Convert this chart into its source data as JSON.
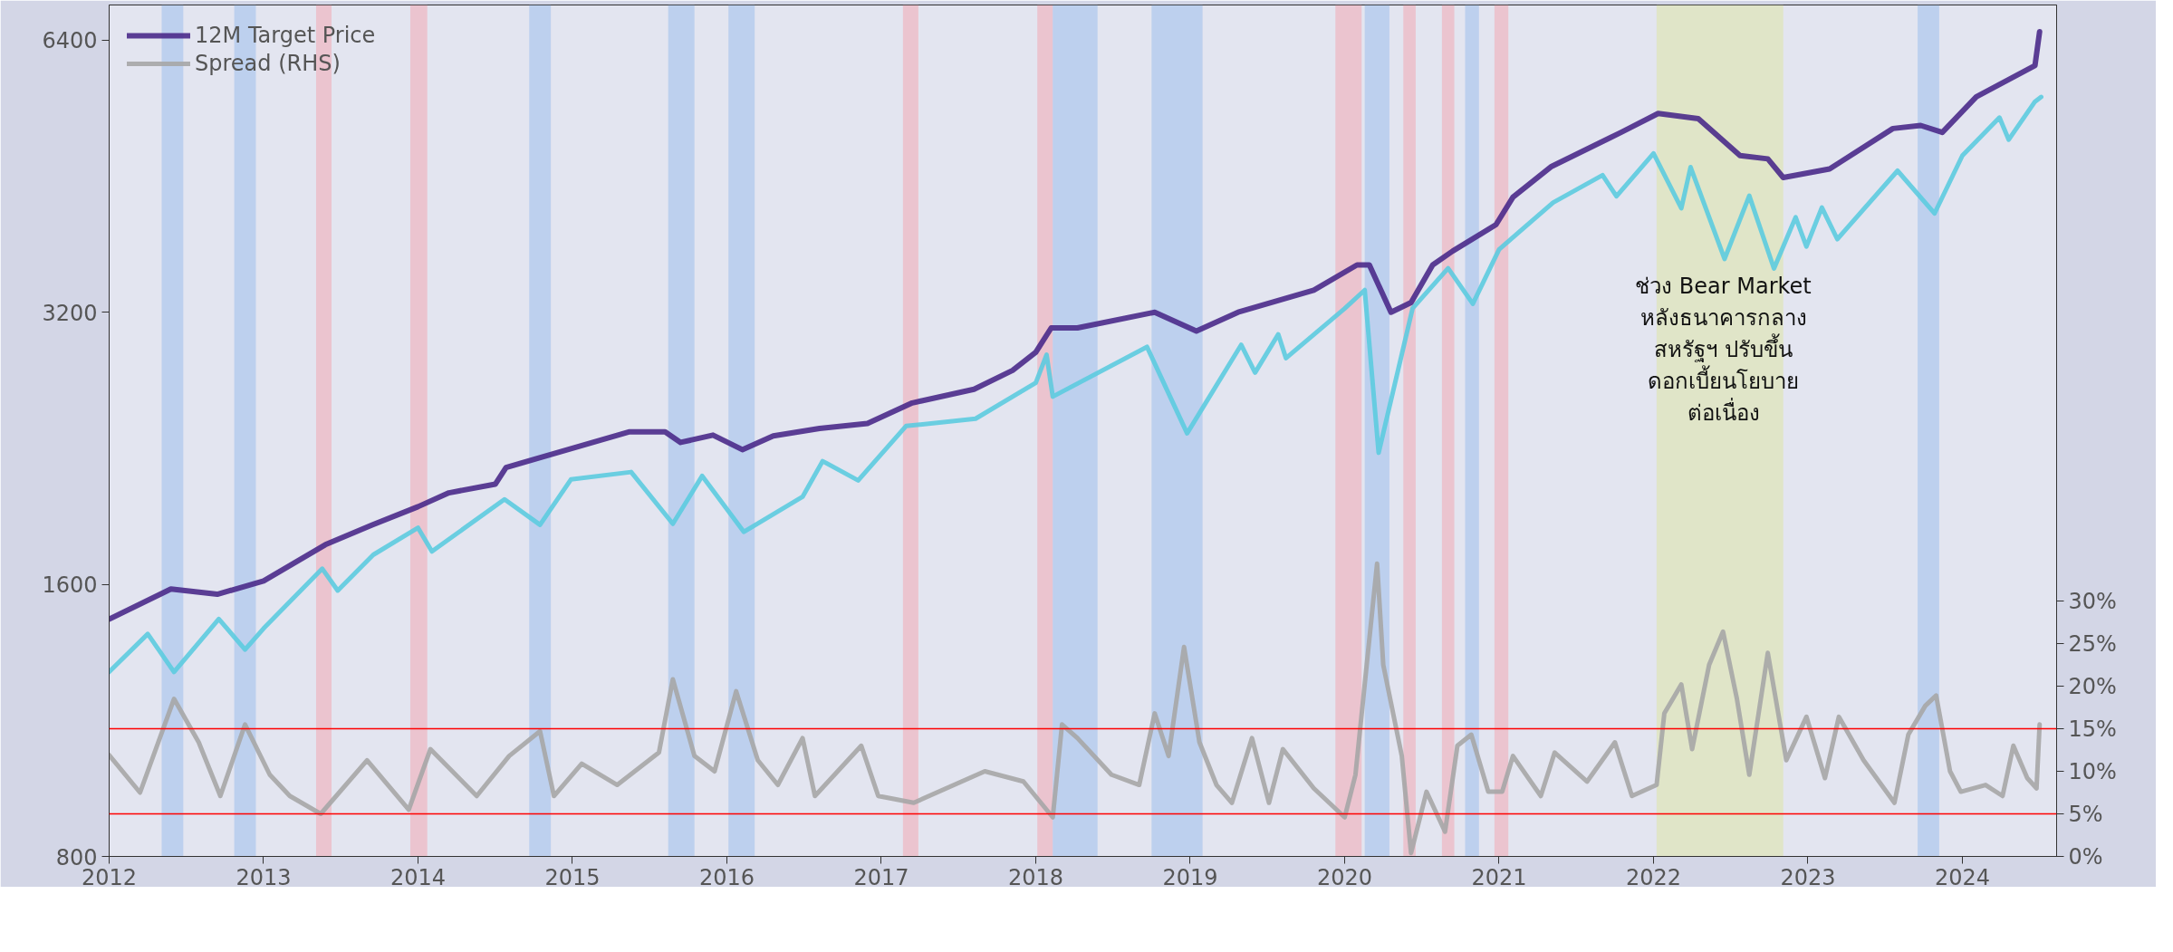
{
  "chart_data": {
    "type": "line",
    "xlim": [
      2012,
      2024.61
    ],
    "xticks": [
      2012,
      2013,
      2014,
      2015,
      2016,
      2017,
      2018,
      2019,
      2020,
      2021,
      2022,
      2023,
      2024
    ],
    "ylim": [
      800,
      7000
    ],
    "yticks": [
      800,
      1600,
      3200,
      6400
    ],
    "log": "y",
    "y2lim": [
      0,
      100
    ],
    "y2ticks": [
      {
        "value": 0,
        "label": "0%"
      },
      {
        "value": 5,
        "label": "5%"
      },
      {
        "value": 10,
        "label": "10%"
      },
      {
        "value": 15,
        "label": "15%"
      },
      {
        "value": 20,
        "label": "20%"
      },
      {
        "value": 25,
        "label": "25%"
      },
      {
        "value": 30,
        "label": "30%"
      }
    ],
    "grid": false,
    "legend": "top left",
    "series": [
      {
        "color": "#5ccbdf",
        "x": [
          2012.0,
          2012.25,
          2012.42,
          2012.71,
          2012.88,
          2013.0,
          2013.38,
          2013.48,
          2013.71,
          2014.0,
          2014.09,
          2014.56,
          2014.79,
          2014.99,
          2015.38,
          2015.65,
          2015.84,
          2016.11,
          2016.49,
          2016.62,
          2016.85,
          2017.16,
          2017.61,
          2018.0,
          2018.07,
          2018.11,
          2018.72,
          2018.98,
          2019.33,
          2019.42,
          2019.57,
          2019.62,
          2020.0,
          2020.13,
          2020.22,
          2020.44,
          2020.67,
          2020.83,
          2021.0,
          2021.35,
          2021.67,
          2021.76,
          2022.0,
          2022.18,
          2022.24,
          2022.46,
          2022.62,
          2022.78,
          2022.92,
          2022.99,
          2023.09,
          2023.19,
          2023.58,
          2023.82,
          2024.0,
          2024.24,
          2024.3,
          2024.47,
          2024.51
        ],
        "values": [
          1280,
          1410,
          1280,
          1465,
          1355,
          1430,
          1665,
          1575,
          1725,
          1848,
          1740,
          1987,
          1862,
          2090,
          2130,
          1867,
          2109,
          1829,
          2000,
          2190,
          2085,
          2395,
          2440,
          2673,
          2872,
          2581,
          2930,
          2351,
          2945,
          2744,
          3025,
          2847,
          3230,
          3386,
          2237,
          3232,
          3580,
          3270,
          3756,
          4232,
          4537,
          4300,
          4796,
          4170,
          4631,
          3666,
          4305,
          3577,
          4076,
          3783,
          4179,
          3855,
          4589,
          4117,
          4770,
          5254,
          4967,
          5473,
          5537
        ]
      },
      {
        "name": "12M Target Price",
        "color": "#4a2a8a",
        "x": [
          2012.0,
          2012.4,
          2012.7,
          2013.0,
          2013.4,
          2013.7,
          2014.0,
          2014.2,
          2014.5,
          2014.57,
          2015.37,
          2015.6,
          2015.7,
          2015.91,
          2016.1,
          2016.3,
          2016.6,
          2016.91,
          2017.2,
          2017.6,
          2017.85,
          2018.0,
          2018.1,
          2018.27,
          2018.77,
          2019.04,
          2019.31,
          2019.8,
          2020.08,
          2020.16,
          2020.3,
          2020.43,
          2020.57,
          2020.7,
          2020.98,
          2021.09,
          2021.34,
          2021.79,
          2022.03,
          2022.29,
          2022.56,
          2022.74,
          2022.84,
          2023.14,
          2023.55,
          2023.73,
          2023.87,
          2024.09,
          2024.47,
          2024.5
        ],
        "values": [
          1464,
          1581,
          1560,
          1614,
          1770,
          1860,
          1950,
          2020,
          2065,
          2155,
          2360,
          2360,
          2297,
          2340,
          2255,
          2335,
          2380,
          2410,
          2540,
          2630,
          2760,
          2890,
          3075,
          3075,
          3200,
          3050,
          3200,
          3385,
          3610,
          3610,
          3200,
          3280,
          3610,
          3740,
          4000,
          4290,
          4640,
          5060,
          5310,
          5240,
          4770,
          4730,
          4510,
          4610,
          5110,
          5150,
          5060,
          5540,
          6000,
          6540
        ]
      },
      {
        "name": "Spread (RHS)",
        "color": "#a6a6a6",
        "axis": "y2",
        "x": [
          2012.0,
          2012.2,
          2012.42,
          2012.58,
          2012.72,
          2012.88,
          2013.04,
          2013.17,
          2013.37,
          2013.67,
          2013.94,
          2014.08,
          2014.38,
          2014.59,
          2014.79,
          2014.88,
          2015.06,
          2015.29,
          2015.56,
          2015.65,
          2015.79,
          2015.92,
          2016.06,
          2016.2,
          2016.33,
          2016.49,
          2016.57,
          2016.87,
          2016.98,
          2017.21,
          2017.67,
          2017.92,
          2018.11,
          2018.17,
          2018.27,
          2018.49,
          2018.67,
          2018.77,
          2018.86,
          2018.96,
          2019.06,
          2019.17,
          2019.27,
          2019.4,
          2019.51,
          2019.6,
          2019.8,
          2020.0,
          2020.07,
          2020.21,
          2020.25,
          2020.37,
          2020.43,
          2020.53,
          2020.65,
          2020.73,
          2020.82,
          2020.93,
          2021.02,
          2021.09,
          2021.27,
          2021.36,
          2021.57,
          2021.75,
          2021.86,
          2022.02,
          2022.07,
          2022.18,
          2022.25,
          2022.36,
          2022.45,
          2022.54,
          2022.62,
          2022.74,
          2022.86,
          2022.99,
          2023.11,
          2023.2,
          2023.36,
          2023.56,
          2023.65,
          2023.76,
          2023.83,
          2023.92,
          2023.99,
          2024.15,
          2024.26,
          2024.33,
          2024.42,
          2024.48,
          2024.5
        ],
        "values": [
          11.9,
          7.5,
          18.5,
          13.4,
          7.1,
          15.5,
          9.6,
          7.1,
          5.0,
          11.3,
          5.5,
          12.6,
          7.1,
          11.8,
          14.7,
          7.1,
          10.9,
          8.4,
          12.2,
          20.8,
          11.8,
          10.0,
          19.4,
          11.3,
          8.4,
          13.9,
          7.1,
          13.0,
          7.1,
          6.3,
          10.0,
          8.8,
          4.6,
          15.5,
          13.9,
          9.6,
          8.4,
          16.8,
          11.8,
          24.6,
          13.4,
          8.4,
          6.3,
          13.9,
          6.3,
          12.6,
          8.0,
          4.6,
          9.6,
          34.4,
          22.5,
          11.8,
          0.4,
          7.6,
          2.9,
          13.0,
          14.3,
          7.6,
          7.6,
          11.8,
          7.1,
          12.2,
          8.8,
          13.4,
          7.1,
          8.4,
          16.8,
          20.2,
          12.6,
          22.5,
          26.4,
          18.5,
          9.6,
          23.9,
          11.3,
          16.4,
          9.2,
          16.4,
          11.3,
          6.3,
          14.3,
          17.7,
          18.9,
          10.0,
          7.6,
          8.4,
          7.1,
          13.0,
          9.2,
          8.0,
          15.5
        ]
      }
    ],
    "bands": [
      {
        "axis": "x",
        "from": 2012.34,
        "to": 2012.48,
        "color": "#9fc0ec"
      },
      {
        "axis": "x",
        "from": 2012.81,
        "to": 2012.95,
        "color": "#9fc0ec"
      },
      {
        "axis": "x",
        "from": 2013.34,
        "to": 2013.44,
        "color": "#f3a9b4"
      },
      {
        "axis": "x",
        "from": 2013.95,
        "to": 2014.06,
        "color": "#f3a9b4"
      },
      {
        "axis": "x",
        "from": 2014.72,
        "to": 2014.86,
        "color": "#9fc0ec"
      },
      {
        "axis": "x",
        "from": 2015.62,
        "to": 2015.79,
        "color": "#9fc0ec"
      },
      {
        "axis": "x",
        "from": 2016.01,
        "to": 2016.18,
        "color": "#9fc0ec"
      },
      {
        "axis": "x",
        "from": 2017.14,
        "to": 2017.24,
        "color": "#f3a9b4"
      },
      {
        "axis": "x",
        "from": 2018.01,
        "to": 2018.11,
        "color": "#f3a9b4"
      },
      {
        "axis": "x",
        "from": 2018.11,
        "to": 2018.4,
        "color": "#9fc0ec"
      },
      {
        "axis": "x",
        "from": 2018.75,
        "to": 2019.08,
        "color": "#9fc0ec"
      },
      {
        "axis": "x",
        "from": 2019.94,
        "to": 2020.11,
        "color": "#f3a9b4"
      },
      {
        "axis": "x",
        "from": 2020.13,
        "to": 2020.29,
        "color": "#9fc0ec"
      },
      {
        "axis": "x",
        "from": 2020.38,
        "to": 2020.46,
        "color": "#f3a9b4"
      },
      {
        "axis": "x",
        "from": 2020.63,
        "to": 2020.71,
        "color": "#f3a9b4"
      },
      {
        "axis": "x",
        "from": 2020.78,
        "to": 2020.87,
        "color": "#9fc0ec"
      },
      {
        "axis": "x",
        "from": 2020.97,
        "to": 2021.06,
        "color": "#f3a9b4"
      },
      {
        "axis": "x",
        "from": 2022.02,
        "to": 2022.84,
        "color": "#dfe6a8"
      },
      {
        "axis": "x",
        "from": 2023.71,
        "to": 2023.85,
        "color": "#9fc0ec"
      }
    ],
    "ref_lines": [
      {
        "axis": "y2",
        "value": 15,
        "color": "#ff0000"
      },
      {
        "axis": "y2",
        "value": 5,
        "color": "#ff0000"
      }
    ],
    "annotations": [
      "ช่วง Bear Market\nหลังธนาคารกลาง\nสหรัฐฯ ปรับขึ้น\nดอกเบี้ยนโยบาย\nต่อเนื่อง"
    ]
  }
}
